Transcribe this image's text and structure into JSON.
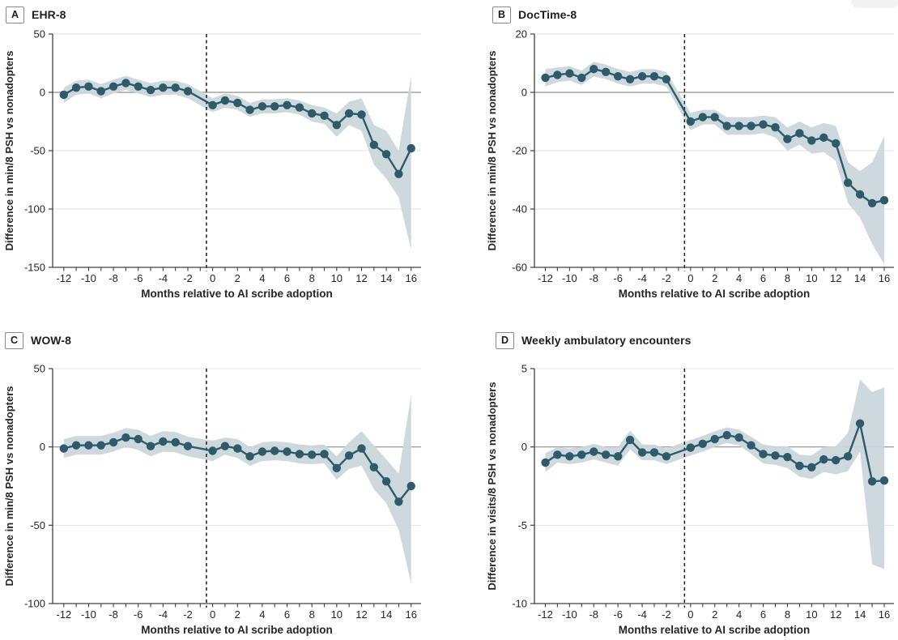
{
  "figure": {
    "background": "#ffffff",
    "colors": {
      "line": "#2e5a69",
      "point": "#2e5a69",
      "band": "#cbd7db",
      "zero_line": "#8f8f8f",
      "grid": "#e3e3e3",
      "axis": "#404040",
      "dashed_line": "#1c1c1c",
      "text": "#262626"
    }
  },
  "chart_data": [
    {
      "type": "line",
      "panel_label": "A",
      "title": "EHR-8",
      "xlabel": "Months relative to AI scribe adoption",
      "ylabel": "Difference in min/8 PSH vs nonadopters",
      "legend": "none",
      "grid": "horizontal",
      "ylim": [
        -150,
        50
      ],
      "yticks": [
        50,
        0,
        -50,
        -100,
        -150
      ],
      "xlim": [
        -12.9,
        16.8
      ],
      "xticks_labeled": [
        -12,
        -10,
        -8,
        -6,
        -4,
        -2,
        0,
        2,
        4,
        6,
        8,
        10,
        12,
        14,
        16
      ],
      "vline_x": -0.5,
      "x": [
        -12,
        -11,
        -10,
        -9,
        -8,
        -7,
        -6,
        -5,
        -4,
        -3,
        -2,
        0,
        1,
        2,
        3,
        4,
        5,
        6,
        7,
        8,
        9,
        10,
        11,
        12,
        13,
        14,
        15,
        16
      ],
      "y": [
        -2,
        4,
        5,
        1,
        5,
        8,
        5,
        2,
        4,
        4,
        1,
        -11,
        -7,
        -9,
        -15,
        -12,
        -12,
        -11,
        -13,
        -18,
        -20,
        -28,
        -18,
        -19,
        -45,
        -53,
        -70,
        -48
      ],
      "ci_lo": [
        -9,
        -2,
        -1,
        -5,
        -1,
        2,
        -1,
        -4,
        -2,
        -2,
        -5,
        -17,
        -13,
        -15,
        -21,
        -18,
        -18,
        -17,
        -19,
        -25,
        -27,
        -38,
        -28,
        -33,
        -62,
        -74,
        -90,
        -135
      ],
      "ci_hi": [
        4,
        10,
        11,
        7,
        11,
        14,
        11,
        8,
        10,
        10,
        7,
        -5,
        -1,
        -3,
        -9,
        -6,
        -6,
        -5,
        -7,
        -11,
        -13,
        -18,
        -8,
        -5,
        -28,
        -33,
        -50,
        14
      ]
    },
    {
      "type": "line",
      "panel_label": "B",
      "title": "DocTime-8",
      "xlabel": "Months relative to AI scribe adoption",
      "ylabel": "Difference in min/8 PSH vs nonadopters",
      "legend": "none",
      "grid": "horizontal",
      "ylim": [
        -60,
        20
      ],
      "yticks": [
        20,
        0,
        -20,
        -40,
        -60
      ],
      "xlim": [
        -12.9,
        16.8
      ],
      "xticks_labeled": [
        -12,
        -10,
        -8,
        -6,
        -4,
        -2,
        0,
        2,
        4,
        6,
        8,
        10,
        12,
        14,
        16
      ],
      "vline_x": -0.5,
      "x": [
        -12,
        -11,
        -10,
        -9,
        -8,
        -7,
        -6,
        -5,
        -4,
        -3,
        -2,
        0,
        1,
        2,
        3,
        4,
        5,
        6,
        7,
        8,
        9,
        10,
        11,
        12,
        13,
        14,
        15,
        16
      ],
      "y": [
        5,
        6,
        6.5,
        5,
        8,
        7,
        5.5,
        4.5,
        5.5,
        5.5,
        4.5,
        -10,
        -8.5,
        -8.5,
        -11.5,
        -11.5,
        -11.5,
        -11,
        -12,
        -16,
        -14,
        -16.5,
        -15.5,
        -17.5,
        -31,
        -35,
        -38,
        -37
      ],
      "ci_lo": [
        2,
        3.5,
        4,
        2.5,
        5.5,
        4.5,
        3,
        2,
        3,
        3,
        2,
        -13,
        -11,
        -11,
        -14.5,
        -14.5,
        -14.5,
        -14,
        -15.5,
        -20,
        -18,
        -21,
        -20.5,
        -23.5,
        -38,
        -43,
        -52,
        -59
      ],
      "ci_hi": [
        8,
        8.5,
        9,
        7.5,
        10.5,
        9.5,
        8,
        7,
        8,
        8,
        7,
        -7,
        -6,
        -6,
        -8.5,
        -8.5,
        -8.5,
        -8,
        -8.5,
        -12,
        -10,
        -12,
        -10.5,
        -11.5,
        -24,
        -27,
        -24,
        -15
      ]
    },
    {
      "type": "line",
      "panel_label": "C",
      "title": "WOW-8",
      "xlabel": "Months relative to AI scribe adoption",
      "ylabel": "Difference in min/8 PSH vs nonadopters",
      "legend": "none",
      "grid": "horizontal",
      "ylim": [
        -100,
        50
      ],
      "yticks": [
        50,
        0,
        -50,
        -100
      ],
      "xlim": [
        -12.9,
        16.8
      ],
      "xticks_labeled": [
        -12,
        -10,
        -8,
        -6,
        -4,
        -2,
        0,
        2,
        4,
        6,
        8,
        10,
        12,
        14,
        16
      ],
      "vline_x": -0.5,
      "x": [
        -12,
        -11,
        -10,
        -9,
        -8,
        -7,
        -6,
        -5,
        -4,
        -3,
        -2,
        0,
        1,
        2,
        3,
        4,
        5,
        6,
        7,
        8,
        9,
        10,
        11,
        12,
        13,
        14,
        15,
        16
      ],
      "y": [
        -1,
        1,
        1,
        1,
        3,
        6,
        5,
        0.5,
        3.5,
        3,
        0.5,
        -2.5,
        0.5,
        -1,
        -6,
        -3,
        -2.5,
        -3,
        -4.5,
        -5,
        -4.5,
        -13.5,
        -5.5,
        -1,
        -13,
        -22,
        -35,
        -25
      ],
      "ci_lo": [
        -7,
        -5,
        -5,
        -5,
        -3,
        0,
        -2,
        -6,
        -3,
        -3.5,
        -6,
        -9,
        -5,
        -7,
        -12,
        -9,
        -8.5,
        -9,
        -10.5,
        -11,
        -10.5,
        -21,
        -14,
        -12,
        -27,
        -36,
        -53,
        -87
      ],
      "ci_hi": [
        5,
        7,
        7,
        7,
        9,
        12,
        11,
        7,
        10,
        9.5,
        6.5,
        4,
        6,
        5,
        0,
        3,
        3.5,
        3,
        1.5,
        1,
        1.5,
        -6,
        3,
        10,
        1,
        -8,
        -17,
        33
      ]
    },
    {
      "type": "line",
      "panel_label": "D",
      "title": "Weekly ambulatory encounters",
      "xlabel": "Months relative to AI scribe adoption",
      "ylabel": "Difference in visits/8 PSH vs nonadopters",
      "legend": "none",
      "grid": "horizontal",
      "ylim": [
        -10,
        5
      ],
      "yticks": [
        5,
        0,
        -5,
        -10
      ],
      "xlim": [
        -12.9,
        16.8
      ],
      "xticks_labeled": [
        -12,
        -10,
        -8,
        -6,
        -4,
        -2,
        0,
        2,
        4,
        6,
        8,
        10,
        12,
        14,
        16
      ],
      "vline_x": -0.5,
      "x": [
        -12,
        -11,
        -10,
        -9,
        -8,
        -7,
        -6,
        -5,
        -4,
        -3,
        -2,
        0,
        1,
        2,
        3,
        4,
        5,
        6,
        7,
        8,
        9,
        10,
        11,
        12,
        13,
        14,
        15,
        16
      ],
      "y": [
        -1.0,
        -0.5,
        -0.6,
        -0.5,
        -0.3,
        -0.5,
        -0.6,
        0.45,
        -0.35,
        -0.35,
        -0.6,
        -0.05,
        0.2,
        0.5,
        0.75,
        0.6,
        0.1,
        -0.45,
        -0.55,
        -0.65,
        -1.2,
        -1.3,
        -0.8,
        -0.85,
        -0.6,
        1.5,
        -2.2,
        -2.15
      ],
      "ci_lo": [
        -1.6,
        -1.0,
        -1.1,
        -1.0,
        -0.8,
        -1.0,
        -1.2,
        -0.15,
        -0.85,
        -0.85,
        -1.1,
        -0.55,
        -0.3,
        0.0,
        0.25,
        0.1,
        -0.45,
        -1.05,
        -1.15,
        -1.35,
        -1.9,
        -2.05,
        -1.6,
        -1.75,
        -1.55,
        -0.3,
        -7.5,
        -7.8
      ],
      "ci_hi": [
        -0.4,
        0.0,
        -0.1,
        0.0,
        0.2,
        0.0,
        0.0,
        1.05,
        0.15,
        0.15,
        -0.1,
        0.45,
        0.7,
        1.0,
        1.25,
        1.1,
        0.65,
        0.15,
        0.05,
        0.05,
        -0.5,
        -0.55,
        0.0,
        0.05,
        0.9,
        4.3,
        3.5,
        3.8
      ]
    }
  ]
}
